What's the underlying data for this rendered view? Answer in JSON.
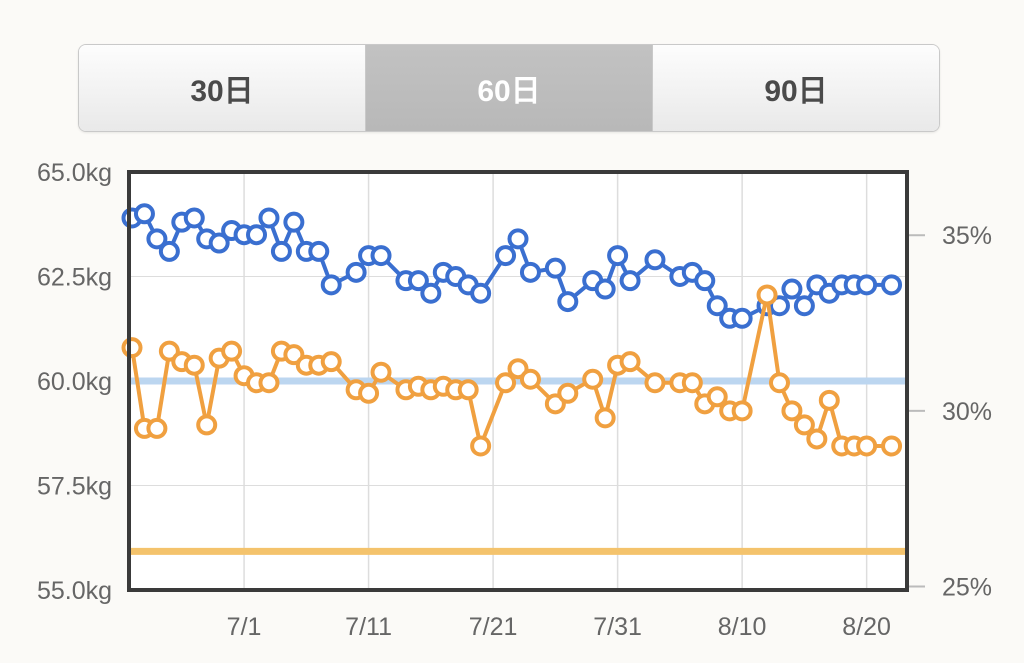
{
  "range_tabs": [
    {
      "label": "30日",
      "selected": false
    },
    {
      "label": "60日",
      "selected": true
    },
    {
      "label": "90日",
      "selected": false
    }
  ],
  "colors": {
    "weight": "#3a6fd0",
    "body_fat": "#f0a040",
    "goal_weight_line": "#bcd6f0",
    "goal_fat_line": "#f4c36c",
    "frame": "#3a3a3a",
    "grid": "#dddddd"
  },
  "chart_data": {
    "type": "line",
    "x_range": [
      "2012-06-22",
      "2012-08-23"
    ],
    "x_ticks": [
      "7/1",
      "7/11",
      "7/21",
      "7/31",
      "8/10",
      "8/20"
    ],
    "x_tick_dates": [
      "2012-07-01",
      "2012-07-11",
      "2012-07-21",
      "2012-07-31",
      "2012-08-10",
      "2012-08-20"
    ],
    "y_left": {
      "ticks": [
        "65.0kg",
        "62.5kg",
        "60.0kg",
        "57.5kg",
        "55.0kg"
      ],
      "range": [
        55.0,
        65.0
      ],
      "unit": "kg"
    },
    "y_right": {
      "ticks": [
        "35%",
        "30%",
        "25%"
      ],
      "range": [
        24.9,
        36.8
      ],
      "unit": "%"
    },
    "reference_lines": [
      {
        "axis": "left",
        "value": 60.0,
        "color": "#bcd6f0"
      },
      {
        "axis": "right",
        "value": 26.0,
        "color": "#f4c36c"
      }
    ],
    "grid": true,
    "series": [
      {
        "axis": "left",
        "color": "#3a6fd0",
        "x": [
          "2012-06-22",
          "2012-06-23",
          "2012-06-24",
          "2012-06-25",
          "2012-06-26",
          "2012-06-27",
          "2012-06-28",
          "2012-06-29",
          "2012-06-30",
          "2012-07-01",
          "2012-07-02",
          "2012-07-03",
          "2012-07-04",
          "2012-07-05",
          "2012-07-06",
          "2012-07-07",
          "2012-07-08",
          "2012-07-10",
          "2012-07-11",
          "2012-07-12",
          "2012-07-14",
          "2012-07-15",
          "2012-07-16",
          "2012-07-17",
          "2012-07-18",
          "2012-07-19",
          "2012-07-20",
          "2012-07-22",
          "2012-07-23",
          "2012-07-24",
          "2012-07-26",
          "2012-07-27",
          "2012-07-29",
          "2012-07-30",
          "2012-07-31",
          "2012-08-01",
          "2012-08-03",
          "2012-08-05",
          "2012-08-06",
          "2012-08-07",
          "2012-08-08",
          "2012-08-09",
          "2012-08-10",
          "2012-08-12",
          "2012-08-13",
          "2012-08-14",
          "2012-08-15",
          "2012-08-16",
          "2012-08-17",
          "2012-08-18",
          "2012-08-19",
          "2012-08-20",
          "2012-08-22"
        ],
        "values": [
          63.9,
          64.0,
          63.4,
          63.1,
          63.8,
          63.9,
          63.4,
          63.3,
          63.6,
          63.5,
          63.5,
          63.9,
          63.1,
          63.8,
          63.1,
          63.1,
          62.3,
          62.6,
          63.0,
          63.0,
          62.4,
          62.4,
          62.1,
          62.6,
          62.5,
          62.3,
          62.1,
          63.0,
          63.4,
          62.6,
          62.7,
          61.9,
          62.4,
          62.2,
          63.0,
          62.4,
          62.9,
          62.5,
          62.6,
          62.4,
          61.8,
          61.5,
          61.5,
          61.8,
          61.8,
          62.2,
          61.8,
          62.3,
          62.1,
          62.3,
          62.3,
          62.3,
          62.3
        ]
      },
      {
        "axis": "right",
        "color": "#f0a040",
        "x": [
          "2012-06-22",
          "2012-06-23",
          "2012-06-24",
          "2012-06-25",
          "2012-06-26",
          "2012-06-27",
          "2012-06-28",
          "2012-06-29",
          "2012-06-30",
          "2012-07-01",
          "2012-07-02",
          "2012-07-03",
          "2012-07-04",
          "2012-07-05",
          "2012-07-06",
          "2012-07-07",
          "2012-07-08",
          "2012-07-10",
          "2012-07-11",
          "2012-07-12",
          "2012-07-14",
          "2012-07-15",
          "2012-07-16",
          "2012-07-17",
          "2012-07-18",
          "2012-07-19",
          "2012-07-20",
          "2012-07-22",
          "2012-07-23",
          "2012-07-24",
          "2012-07-26",
          "2012-07-27",
          "2012-07-29",
          "2012-07-30",
          "2012-07-31",
          "2012-08-01",
          "2012-08-03",
          "2012-08-05",
          "2012-08-06",
          "2012-08-07",
          "2012-08-08",
          "2012-08-09",
          "2012-08-10",
          "2012-08-12",
          "2012-08-13",
          "2012-08-14",
          "2012-08-15",
          "2012-08-16",
          "2012-08-17",
          "2012-08-18",
          "2012-08-19",
          "2012-08-20",
          "2012-08-22"
        ],
        "values": [
          31.8,
          29.5,
          29.5,
          31.7,
          31.4,
          31.3,
          29.6,
          31.5,
          31.7,
          31.0,
          30.8,
          30.8,
          31.7,
          31.6,
          31.3,
          31.3,
          31.4,
          30.6,
          30.5,
          31.1,
          30.6,
          30.7,
          30.6,
          30.7,
          30.6,
          30.6,
          29.0,
          30.8,
          31.2,
          30.9,
          30.2,
          30.5,
          30.9,
          29.8,
          31.3,
          31.4,
          30.8,
          30.8,
          30.8,
          30.2,
          30.4,
          30.0,
          30.0,
          33.3,
          30.8,
          30.0,
          29.6,
          29.2,
          30.3,
          29.0,
          29.0,
          29.0,
          29.0
        ]
      }
    ]
  }
}
